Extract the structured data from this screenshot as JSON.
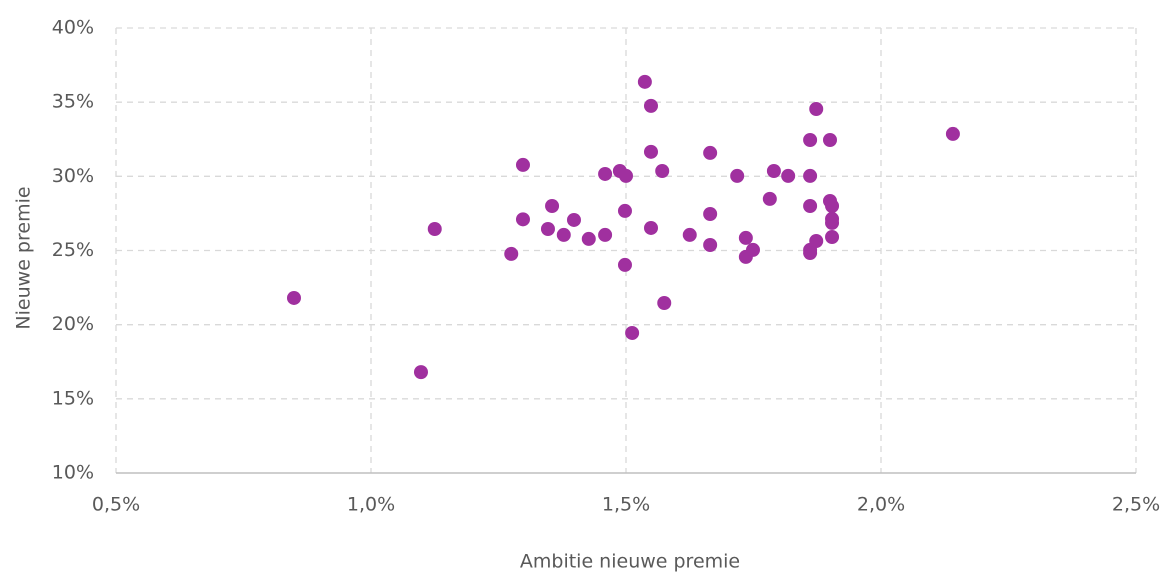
{
  "chart_data": {
    "type": "scatter",
    "xlabel": "Ambitie nieuwe premie",
    "ylabel": "Nieuwe premie",
    "color": "#a0309f",
    "grid": true,
    "xlim": [
      0.5,
      2.5
    ],
    "ylim": [
      10,
      40
    ],
    "xticks": [
      {
        "value": 0.5,
        "label": "0,5%"
      },
      {
        "value": 1.0,
        "label": "1,0%"
      },
      {
        "value": 1.5,
        "label": "1,5%"
      },
      {
        "value": 2.0,
        "label": "2,0%"
      },
      {
        "value": 2.5,
        "label": "2,5%"
      }
    ],
    "yticks": [
      {
        "value": 10,
        "label": "10%"
      },
      {
        "value": 15,
        "label": "15%"
      },
      {
        "value": 20,
        "label": "20%"
      },
      {
        "value": 25,
        "label": "25%"
      },
      {
        "value": 30,
        "label": "30%"
      },
      {
        "value": 35,
        "label": "35%"
      },
      {
        "value": 40,
        "label": "40%"
      }
    ],
    "x": [
      0.849,
      1.098,
      1.125,
      1.275,
      1.298,
      1.298,
      1.347,
      1.355,
      1.378,
      1.398,
      1.427,
      1.459,
      1.459,
      1.488,
      1.5,
      1.498,
      1.498,
      1.512,
      1.537,
      1.549,
      1.549,
      1.549,
      1.571,
      1.575,
      1.625,
      1.665,
      1.665,
      1.665,
      1.718,
      1.735,
      1.735,
      1.749,
      1.782,
      1.79,
      1.818,
      1.861,
      1.861,
      1.861,
      1.861,
      1.861,
      1.873,
      1.873,
      1.9,
      1.9,
      1.904,
      1.904,
      1.904,
      1.904,
      2.141
    ],
    "values": [
      21.8,
      16.8,
      26.45,
      24.77,
      30.77,
      27.1,
      26.45,
      28.0,
      26.05,
      27.06,
      25.78,
      26.05,
      30.16,
      30.36,
      30.03,
      27.67,
      24.03,
      19.44,
      36.37,
      34.75,
      31.65,
      26.52,
      30.36,
      21.46,
      26.05,
      31.58,
      27.46,
      25.37,
      30.03,
      25.85,
      24.57,
      25.04,
      28.48,
      30.36,
      30.03,
      32.45,
      30.03,
      28.0,
      25.04,
      24.83,
      34.54,
      25.64,
      32.45,
      28.34,
      28.0,
      27.13,
      26.86,
      25.91,
      32.86
    ]
  }
}
